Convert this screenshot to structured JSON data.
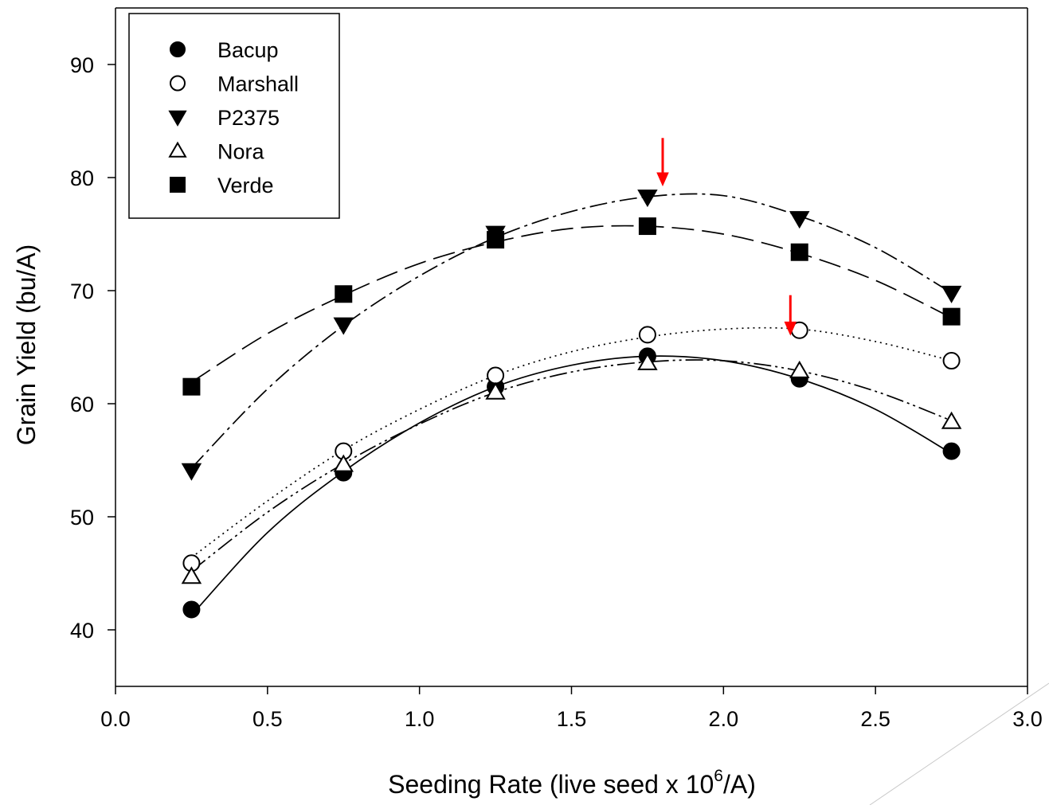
{
  "chart_data": {
    "type": "scatter",
    "xlabel_prefix": "Seeding Rate (live seed x 10",
    "xlabel_superscript": "6",
    "xlabel_suffix": "/A)",
    "ylabel": "Grain Yield (bu/A)",
    "xlim": [
      0.0,
      3.0
    ],
    "ylim": [
      35,
      95
    ],
    "xticks": [
      0.0,
      0.5,
      1.0,
      1.5,
      2.0,
      2.5,
      3.0
    ],
    "xtick_labels": [
      "0.0",
      "0.5",
      "1.0",
      "1.5",
      "2.0",
      "2.5",
      "3.0"
    ],
    "yticks": [
      40,
      50,
      60,
      70,
      80,
      90
    ],
    "ytick_labels": [
      "40",
      "50",
      "60",
      "70",
      "80",
      "90"
    ],
    "grid": false,
    "legend_position": "top-left",
    "x": [
      0.25,
      0.75,
      1.25,
      1.75,
      2.25,
      2.75
    ],
    "series": [
      {
        "name": "Bacup",
        "marker": "circle-filled",
        "line": "solid",
        "values": [
          41.8,
          53.9,
          61.5,
          64.2,
          62.2,
          55.8
        ],
        "fit_curve": [
          [
            0.25,
            41.3
          ],
          [
            0.5,
            48.6
          ],
          [
            0.75,
            54.0
          ],
          [
            1.0,
            58.3
          ],
          [
            1.25,
            61.5
          ],
          [
            1.5,
            63.4
          ],
          [
            1.75,
            64.2
          ],
          [
            2.0,
            63.8
          ],
          [
            2.25,
            62.2
          ],
          [
            2.5,
            59.5
          ],
          [
            2.75,
            55.6
          ]
        ]
      },
      {
        "name": "Marshall",
        "marker": "circle-open",
        "line": "dotted",
        "values": [
          45.9,
          55.8,
          62.5,
          66.1,
          66.5,
          63.8
        ],
        "fit_curve": [
          [
            0.25,
            46.4
          ],
          [
            0.5,
            51.4
          ],
          [
            0.75,
            55.9
          ],
          [
            1.0,
            59.5
          ],
          [
            1.25,
            62.5
          ],
          [
            1.5,
            64.6
          ],
          [
            1.75,
            65.9
          ],
          [
            2.0,
            66.6
          ],
          [
            2.25,
            66.6
          ],
          [
            2.5,
            65.5
          ],
          [
            2.75,
            63.8
          ]
        ]
      },
      {
        "name": "P2375",
        "marker": "triangle-down-filled",
        "line": "dash-dot",
        "values": [
          54.1,
          67.0,
          75.1,
          78.3,
          76.4,
          69.8
        ],
        "fit_curve": [
          [
            0.25,
            54.3
          ],
          [
            0.5,
            61.3
          ],
          [
            0.75,
            66.9
          ],
          [
            1.0,
            71.3
          ],
          [
            1.25,
            74.7
          ],
          [
            1.5,
            77.0
          ],
          [
            1.75,
            78.3
          ],
          [
            2.0,
            78.4
          ],
          [
            2.25,
            76.6
          ],
          [
            2.5,
            73.8
          ],
          [
            2.75,
            69.8
          ]
        ]
      },
      {
        "name": "Nora",
        "marker": "triangle-up-open",
        "line": "dash-dot-dot",
        "values": [
          44.7,
          54.6,
          61.0,
          63.6,
          62.9,
          58.4
        ],
        "fit_curve": [
          [
            0.25,
            45.2
          ],
          [
            0.5,
            50.4
          ],
          [
            0.75,
            54.7
          ],
          [
            1.0,
            58.2
          ],
          [
            1.25,
            61.0
          ],
          [
            1.5,
            62.8
          ],
          [
            1.75,
            63.7
          ],
          [
            2.0,
            63.8
          ],
          [
            2.25,
            62.9
          ],
          [
            2.5,
            61.1
          ],
          [
            2.75,
            58.5
          ]
        ]
      },
      {
        "name": "Verde",
        "marker": "square-filled",
        "line": "long-dash",
        "values": [
          61.5,
          69.7,
          74.5,
          75.7,
          73.4,
          67.7
        ],
        "fit_curve": [
          [
            0.25,
            61.9
          ],
          [
            0.5,
            66.2
          ],
          [
            0.75,
            69.6
          ],
          [
            1.0,
            72.4
          ],
          [
            1.25,
            74.3
          ],
          [
            1.5,
            75.5
          ],
          [
            1.75,
            75.7
          ],
          [
            2.0,
            75.0
          ],
          [
            2.25,
            73.3
          ],
          [
            2.5,
            70.9
          ],
          [
            2.75,
            67.6
          ]
        ]
      }
    ],
    "annotations": [
      {
        "type": "arrow-down",
        "x": 1.8,
        "y_top": 83.5,
        "y_bottom": 79.3,
        "color": "#ff0000"
      },
      {
        "type": "arrow-down",
        "x": 2.22,
        "y_top": 69.6,
        "y_bottom": 66.1,
        "color": "#ff0000"
      }
    ]
  }
}
